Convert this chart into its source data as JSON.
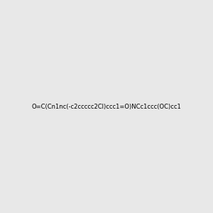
{
  "smiles": "O=C(Cn1nc(-c2ccccc2Cl)ccc1=O)NCc1ccc(OC)cc1",
  "img_size": [
    300,
    300
  ],
  "background_color": "#e8e8e8",
  "title": ""
}
